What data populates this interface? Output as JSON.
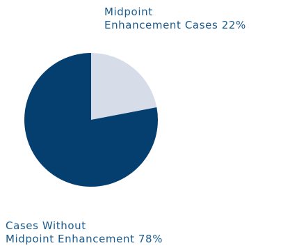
{
  "chart_data": {
    "type": "pie",
    "slices": [
      {
        "label_lines": [
          "Midpoint",
          "Enhancement Cases 22%"
        ],
        "value": 22,
        "color": "#d6dce8"
      },
      {
        "label_lines": [
          "Cases Without",
          "Midpoint Enhancement 78%"
        ],
        "value": 78,
        "color": "#053f70"
      }
    ],
    "label_color": "#1a5a8c"
  }
}
